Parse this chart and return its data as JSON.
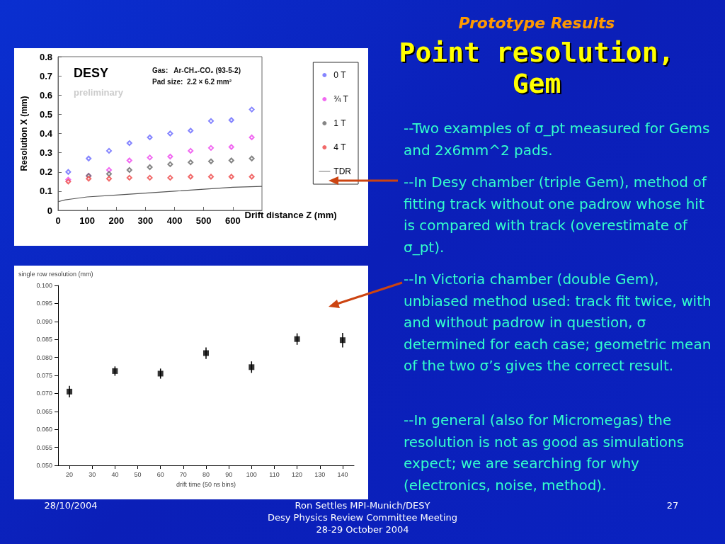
{
  "chart_data": [
    {
      "type": "scatter",
      "xlabel": "Drift distance Z (mm)",
      "ylabel": "Resolution X (mm)",
      "xlim": [
        0,
        700
      ],
      "xticks": [
        0,
        100,
        200,
        300,
        400,
        500,
        600
      ],
      "ylim": [
        0,
        0.8
      ],
      "yticks": [
        0,
        0.1,
        0.2,
        0.3,
        0.4,
        0.5,
        0.6,
        0.7,
        0.8
      ],
      "legend": "right",
      "marker": "diamond",
      "grid": false,
      "annotations": [
        "DESY",
        "preliminary",
        "Gas:   Ar-CH₄-CO₂ (93-5-2)",
        "Pad size:  2.2 × 6.2 mm²"
      ],
      "x": [
        35,
        105,
        175,
        245,
        315,
        385,
        455,
        525,
        595,
        665
      ],
      "series": [
        {
          "name": "0 T",
          "color": "#6666ff",
          "values": [
            0.2,
            0.27,
            0.31,
            0.35,
            0.38,
            0.4,
            0.415,
            0.465,
            0.47,
            0.525
          ]
        },
        {
          "name": "¾ T",
          "color": "#ee44ee",
          "values": [
            0.16,
            0.18,
            0.21,
            0.26,
            0.275,
            0.28,
            0.31,
            0.325,
            0.33,
            0.38
          ]
        },
        {
          "name": "1 T",
          "color": "#666666",
          "values": [
            null,
            0.18,
            0.19,
            0.21,
            0.225,
            0.24,
            0.25,
            0.255,
            0.26,
            0.27
          ]
        },
        {
          "name": "4 T",
          "color": "#ee4444",
          "values": [
            0.15,
            0.165,
            0.165,
            0.17,
            0.17,
            0.17,
            0.175,
            0.175,
            0.175,
            0.175
          ]
        },
        {
          "name": "TDR",
          "type": "line",
          "marker": "none",
          "color": "#555555",
          "x": [
            0,
            25,
            50,
            100,
            200,
            300,
            400,
            500,
            600,
            700
          ],
          "values": [
            0.045,
            0.055,
            0.06,
            0.07,
            0.08,
            0.09,
            0.1,
            0.11,
            0.12,
            0.125
          ]
        }
      ]
    },
    {
      "type": "scatter",
      "xlabel": "drift time (50 ns bins)",
      "ylabel": "single row resolution (mm)",
      "xlim": [
        15,
        145
      ],
      "xticks": [
        20,
        30,
        40,
        50,
        60,
        70,
        80,
        90,
        100,
        110,
        120,
        130,
        140
      ],
      "ylim": [
        0.05,
        0.1
      ],
      "yticks": [
        {
          "value": 0.05,
          "label": "0.050"
        },
        {
          "value": 0.055,
          "label": "0.055"
        },
        {
          "value": 0.06,
          "label": "0.060"
        },
        {
          "value": 0.065,
          "label": "0.065"
        },
        {
          "value": 0.07,
          "label": "0.070"
        },
        {
          "value": 0.075,
          "label": "0.075"
        },
        {
          "value": 0.08,
          "label": "0.080"
        },
        {
          "value": 0.085,
          "label": "0.085"
        },
        {
          "value": 0.09,
          "label": "0.090"
        },
        {
          "value": 0.095,
          "label": "0.095"
        },
        {
          "value": 0.1,
          "label": "0.100"
        }
      ],
      "marker": "square",
      "grid": false,
      "legend": false,
      "x": [
        20,
        40,
        60,
        80,
        100,
        120,
        140
      ],
      "series": [
        {
          "color": "#000000",
          "values": [
            0.0705,
            0.0762,
            0.0755,
            0.0812,
            0.0773,
            0.0851,
            0.0848
          ],
          "errors": [
            0.0016,
            0.0013,
            0.0014,
            0.0016,
            0.0016,
            0.0016,
            0.002
          ]
        }
      ]
    },
    {
      "type": "other",
      "title": "Prototype Results",
      "subtitle": "Point resolution, Gem",
      "annotations": [
        "--Two examples of σ_pt measured for Gems and 2x6mm^2 pads.",
        "--In Desy chamber (triple Gem), method of fitting track without one padrow whose hit is compared with track (overestimate  of σ_pt).",
        "--In Victoria chamber (double Gem), unbiased method used: track fit twice, with and without padrow in question, σ determined for each case; geometric mean of the two σ’s gives the correct result.",
        "--In general (also for Micromegas) the resolution is not as good as simulations expect; we are searching for why (electronics, noise, method).",
        "28/10/2004",
        "Ron Settles  MPI-Munich/DESY",
        "Desy Physics Review Committee Meeting",
        "28-29 October 2004",
        "27"
      ]
    }
  ]
}
